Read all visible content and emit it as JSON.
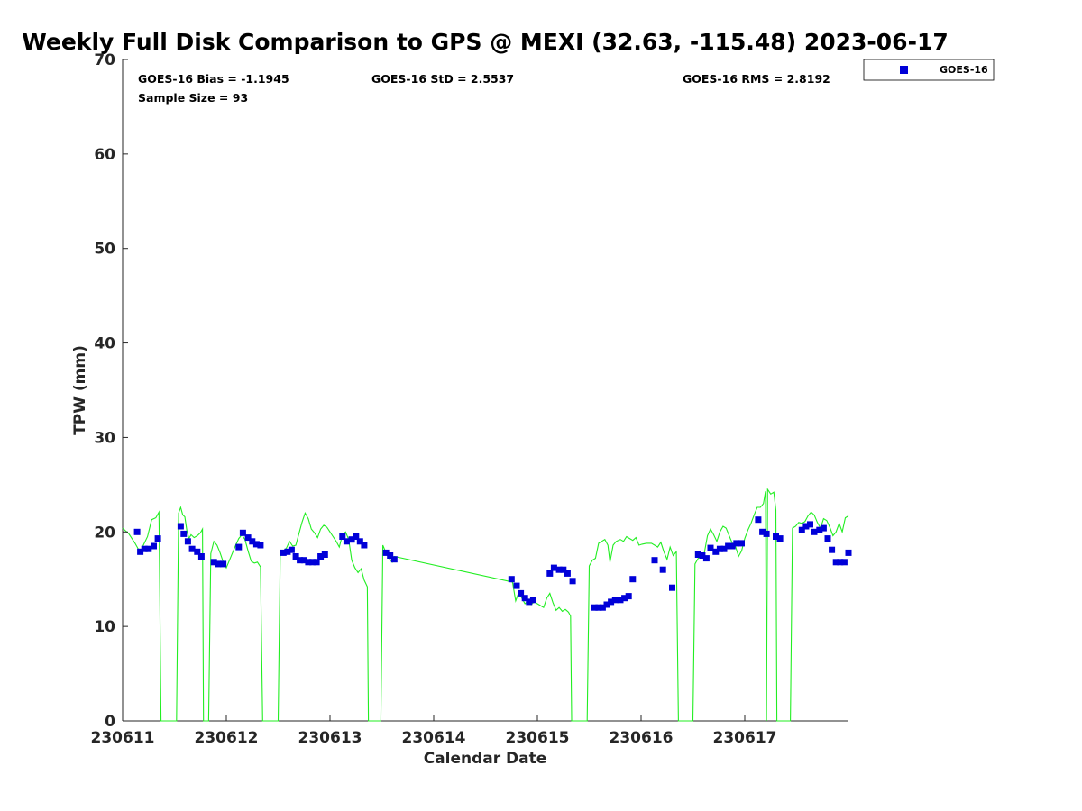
{
  "chart_data": {
    "type": "scatter",
    "title": "Weekly Full Disk Comparison to GPS @ MEXI (32.63, -115.48) 2023-06-17",
    "xlabel": "Calendar Date",
    "ylabel": "TPW (mm)",
    "xlim": [
      0,
      7
    ],
    "ylim": [
      0,
      70
    ],
    "x_ticks": [
      0,
      1,
      2,
      3,
      4,
      5,
      6
    ],
    "x_tick_labels": [
      "230611",
      "230612",
      "230613",
      "230614",
      "230615",
      "230616",
      "230617"
    ],
    "y_ticks": [
      0,
      10,
      20,
      30,
      40,
      50,
      60,
      70
    ],
    "y_tick_labels": [
      "0",
      "10",
      "20",
      "30",
      "40",
      "50",
      "60",
      "70"
    ],
    "grid": false,
    "legend": {
      "position": "top-right",
      "entries": [
        "GOES-16"
      ]
    },
    "stats": {
      "bias": "GOES-16 Bias = -1.1945",
      "std": "GOES-16 StD = 2.5537",
      "rms": "GOES-16 RMS = 2.8192",
      "sample": "Sample Size = 93"
    },
    "colors": {
      "goes": "#0000d8",
      "gps": "#22ee22"
    },
    "series": [
      {
        "name": "GOES-16",
        "kind": "markers",
        "points": [
          [
            0.14,
            20.0
          ],
          [
            0.17,
            17.9
          ],
          [
            0.21,
            18.2
          ],
          [
            0.25,
            18.2
          ],
          [
            0.3,
            18.5
          ],
          [
            0.34,
            19.3
          ],
          [
            0.56,
            20.6
          ],
          [
            0.59,
            19.8
          ],
          [
            0.63,
            19.0
          ],
          [
            0.67,
            18.2
          ],
          [
            0.72,
            17.9
          ],
          [
            0.76,
            17.4
          ],
          [
            0.88,
            16.8
          ],
          [
            0.92,
            16.6
          ],
          [
            0.97,
            16.6
          ],
          [
            1.12,
            18.4
          ],
          [
            1.16,
            19.9
          ],
          [
            1.21,
            19.4
          ],
          [
            1.25,
            19.0
          ],
          [
            1.29,
            18.7
          ],
          [
            1.33,
            18.6
          ],
          [
            1.55,
            17.8
          ],
          [
            1.59,
            17.9
          ],
          [
            1.63,
            18.1
          ],
          [
            1.67,
            17.4
          ],
          [
            1.71,
            17.0
          ],
          [
            1.75,
            17.0
          ],
          [
            1.79,
            16.8
          ],
          [
            1.83,
            16.8
          ],
          [
            1.87,
            16.8
          ],
          [
            1.91,
            17.4
          ],
          [
            1.95,
            17.6
          ],
          [
            2.12,
            19.5
          ],
          [
            2.16,
            19.0
          ],
          [
            2.21,
            19.2
          ],
          [
            2.25,
            19.5
          ],
          [
            2.29,
            19.0
          ],
          [
            2.33,
            18.6
          ],
          [
            2.54,
            17.8
          ],
          [
            2.58,
            17.5
          ],
          [
            2.62,
            17.1
          ],
          [
            3.75,
            15.0
          ],
          [
            3.8,
            14.3
          ],
          [
            3.84,
            13.5
          ],
          [
            3.88,
            13.0
          ],
          [
            3.92,
            12.6
          ],
          [
            3.96,
            12.8
          ],
          [
            4.12,
            15.6
          ],
          [
            4.16,
            16.2
          ],
          [
            4.21,
            16.0
          ],
          [
            4.25,
            16.0
          ],
          [
            4.29,
            15.6
          ],
          [
            4.34,
            14.8
          ],
          [
            4.55,
            12.0
          ],
          [
            4.59,
            12.0
          ],
          [
            4.63,
            12.0
          ],
          [
            4.67,
            12.3
          ],
          [
            4.71,
            12.6
          ],
          [
            4.75,
            12.8
          ],
          [
            4.8,
            12.8
          ],
          [
            4.84,
            13.0
          ],
          [
            4.88,
            13.2
          ],
          [
            4.92,
            15.0
          ],
          [
            5.13,
            17.0
          ],
          [
            5.21,
            16.0
          ],
          [
            5.3,
            14.1
          ],
          [
            5.55,
            17.6
          ],
          [
            5.59,
            17.5
          ],
          [
            5.63,
            17.2
          ],
          [
            5.67,
            18.3
          ],
          [
            5.72,
            17.9
          ],
          [
            5.76,
            18.2
          ],
          [
            5.8,
            18.2
          ],
          [
            5.84,
            18.5
          ],
          [
            5.88,
            18.5
          ],
          [
            5.92,
            18.8
          ],
          [
            5.97,
            18.8
          ],
          [
            6.13,
            21.3
          ],
          [
            6.17,
            20.0
          ],
          [
            6.21,
            19.8
          ],
          [
            6.3,
            19.5
          ],
          [
            6.34,
            19.3
          ],
          [
            6.55,
            20.2
          ],
          [
            6.59,
            20.6
          ],
          [
            6.63,
            20.8
          ],
          [
            6.67,
            20.0
          ],
          [
            6.72,
            20.2
          ],
          [
            6.76,
            20.4
          ],
          [
            6.8,
            19.3
          ],
          [
            6.84,
            18.1
          ],
          [
            6.88,
            16.8
          ],
          [
            6.92,
            16.8
          ],
          [
            6.96,
            16.8
          ],
          [
            7.0,
            17.8
          ]
        ]
      },
      {
        "name": "GPS",
        "kind": "line",
        "points": [
          [
            0.0,
            20.4
          ],
          [
            0.06,
            19.8
          ],
          [
            0.12,
            18.8
          ],
          [
            0.17,
            17.8
          ],
          [
            0.2,
            18.6
          ],
          [
            0.24,
            19.5
          ],
          [
            0.28,
            21.3
          ],
          [
            0.32,
            21.5
          ],
          [
            0.35,
            22.1
          ],
          [
            0.37,
            0
          ],
          [
            0.52,
            0
          ],
          [
            0.54,
            22.0
          ],
          [
            0.56,
            22.6
          ],
          [
            0.58,
            21.8
          ],
          [
            0.6,
            21.6
          ],
          [
            0.62,
            20.1
          ],
          [
            0.64,
            19.3
          ],
          [
            0.66,
            19.7
          ],
          [
            0.69,
            19.4
          ],
          [
            0.72,
            19.6
          ],
          [
            0.75,
            19.9
          ],
          [
            0.77,
            20.3
          ],
          [
            0.78,
            0
          ],
          [
            0.83,
            0
          ],
          [
            0.85,
            17.7
          ],
          [
            0.88,
            19.0
          ],
          [
            0.91,
            18.6
          ],
          [
            0.94,
            17.8
          ],
          [
            0.97,
            16.8
          ],
          [
            1.0,
            16.2
          ],
          [
            1.03,
            17.0
          ],
          [
            1.06,
            17.8
          ],
          [
            1.09,
            18.6
          ],
          [
            1.12,
            19.3
          ],
          [
            1.15,
            19.7
          ],
          [
            1.18,
            19.2
          ],
          [
            1.21,
            18.0
          ],
          [
            1.24,
            16.9
          ],
          [
            1.27,
            16.7
          ],
          [
            1.3,
            16.8
          ],
          [
            1.33,
            16.3
          ],
          [
            1.35,
            0
          ],
          [
            1.5,
            0
          ],
          [
            1.52,
            17.5
          ],
          [
            1.55,
            18.0
          ],
          [
            1.58,
            18.3
          ],
          [
            1.61,
            19.0
          ],
          [
            1.64,
            18.5
          ],
          [
            1.67,
            18.6
          ],
          [
            1.7,
            19.8
          ],
          [
            1.73,
            21.0
          ],
          [
            1.76,
            22.0
          ],
          [
            1.79,
            21.4
          ],
          [
            1.82,
            20.3
          ],
          [
            1.85,
            19.9
          ],
          [
            1.88,
            19.4
          ],
          [
            1.91,
            20.3
          ],
          [
            1.94,
            20.7
          ],
          [
            1.97,
            20.5
          ],
          [
            2.0,
            20.0
          ],
          [
            2.03,
            19.5
          ],
          [
            2.06,
            19.0
          ],
          [
            2.09,
            18.4
          ],
          [
            2.12,
            19.7
          ],
          [
            2.15,
            20.0
          ],
          [
            2.18,
            19.2
          ],
          [
            2.21,
            17.0
          ],
          [
            2.24,
            16.2
          ],
          [
            2.27,
            15.7
          ],
          [
            2.3,
            16.1
          ],
          [
            2.33,
            14.9
          ],
          [
            2.36,
            14.2
          ],
          [
            2.37,
            0
          ],
          [
            2.49,
            0
          ],
          [
            2.51,
            18.6
          ],
          [
            2.54,
            17.8
          ],
          [
            2.57,
            17.2
          ],
          [
            2.6,
            16.8
          ],
          [
            2.62,
            17.4
          ],
          [
            3.76,
            14.7
          ],
          [
            3.79,
            12.7
          ],
          [
            3.82,
            13.6
          ],
          [
            3.85,
            13.0
          ],
          [
            3.88,
            12.4
          ],
          [
            3.91,
            12.7
          ],
          [
            3.94,
            12.3
          ],
          [
            3.97,
            12.6
          ],
          [
            4.0,
            12.4
          ],
          [
            4.03,
            12.2
          ],
          [
            4.06,
            12.0
          ],
          [
            4.09,
            13.0
          ],
          [
            4.12,
            13.5
          ],
          [
            4.15,
            12.5
          ],
          [
            4.18,
            11.7
          ],
          [
            4.21,
            12.0
          ],
          [
            4.24,
            11.6
          ],
          [
            4.27,
            11.8
          ],
          [
            4.3,
            11.5
          ],
          [
            4.32,
            11.1
          ],
          [
            4.33,
            0
          ],
          [
            4.48,
            0
          ],
          [
            4.5,
            16.4
          ],
          [
            4.53,
            17.0
          ],
          [
            4.56,
            17.2
          ],
          [
            4.59,
            18.8
          ],
          [
            4.62,
            19.0
          ],
          [
            4.65,
            19.2
          ],
          [
            4.68,
            18.6
          ],
          [
            4.7,
            16.8
          ],
          [
            4.73,
            18.6
          ],
          [
            4.76,
            19.0
          ],
          [
            4.8,
            19.2
          ],
          [
            4.83,
            19.0
          ],
          [
            4.86,
            19.5
          ],
          [
            4.89,
            19.3
          ],
          [
            4.92,
            19.1
          ],
          [
            4.95,
            19.4
          ],
          [
            4.98,
            18.6
          ],
          [
            5.01,
            18.7
          ],
          [
            5.05,
            18.8
          ],
          [
            5.1,
            18.8
          ],
          [
            5.13,
            18.6
          ],
          [
            5.16,
            18.4
          ],
          [
            5.19,
            18.9
          ],
          [
            5.22,
            17.9
          ],
          [
            5.25,
            17.1
          ],
          [
            5.28,
            18.4
          ],
          [
            5.31,
            17.5
          ],
          [
            5.34,
            17.9
          ],
          [
            5.36,
            0
          ],
          [
            5.5,
            0
          ],
          [
            5.52,
            16.6
          ],
          [
            5.55,
            17.2
          ],
          [
            5.58,
            17.5
          ],
          [
            5.61,
            17.8
          ],
          [
            5.64,
            19.6
          ],
          [
            5.67,
            20.3
          ],
          [
            5.7,
            19.7
          ],
          [
            5.73,
            19.0
          ],
          [
            5.76,
            20.0
          ],
          [
            5.79,
            20.6
          ],
          [
            5.82,
            20.4
          ],
          [
            5.85,
            19.6
          ],
          [
            5.88,
            18.8
          ],
          [
            5.91,
            18.5
          ],
          [
            5.94,
            17.4
          ],
          [
            5.97,
            18.0
          ],
          [
            6.0,
            19.3
          ],
          [
            6.03,
            20.2
          ],
          [
            6.06,
            20.9
          ],
          [
            6.09,
            21.8
          ],
          [
            6.12,
            22.6
          ],
          [
            6.15,
            22.6
          ],
          [
            6.18,
            23.0
          ],
          [
            6.2,
            24.3
          ],
          [
            6.21,
            0
          ],
          [
            6.22,
            24.5
          ],
          [
            6.25,
            24.0
          ],
          [
            6.28,
            24.2
          ],
          [
            6.3,
            22.3
          ],
          [
            6.31,
            0
          ],
          [
            6.44,
            0
          ],
          [
            6.46,
            20.4
          ],
          [
            6.49,
            20.6
          ],
          [
            6.52,
            21.0
          ],
          [
            6.55,
            20.9
          ],
          [
            6.58,
            21.1
          ],
          [
            6.61,
            21.7
          ],
          [
            6.64,
            22.1
          ],
          [
            6.67,
            21.8
          ],
          [
            6.7,
            21.0
          ],
          [
            6.73,
            20.4
          ],
          [
            6.76,
            21.4
          ],
          [
            6.79,
            21.2
          ],
          [
            6.82,
            20.5
          ],
          [
            6.85,
            19.6
          ],
          [
            6.88,
            20.0
          ],
          [
            6.91,
            20.9
          ],
          [
            6.94,
            20.0
          ],
          [
            6.97,
            21.5
          ],
          [
            7.0,
            21.7
          ]
        ]
      }
    ]
  }
}
